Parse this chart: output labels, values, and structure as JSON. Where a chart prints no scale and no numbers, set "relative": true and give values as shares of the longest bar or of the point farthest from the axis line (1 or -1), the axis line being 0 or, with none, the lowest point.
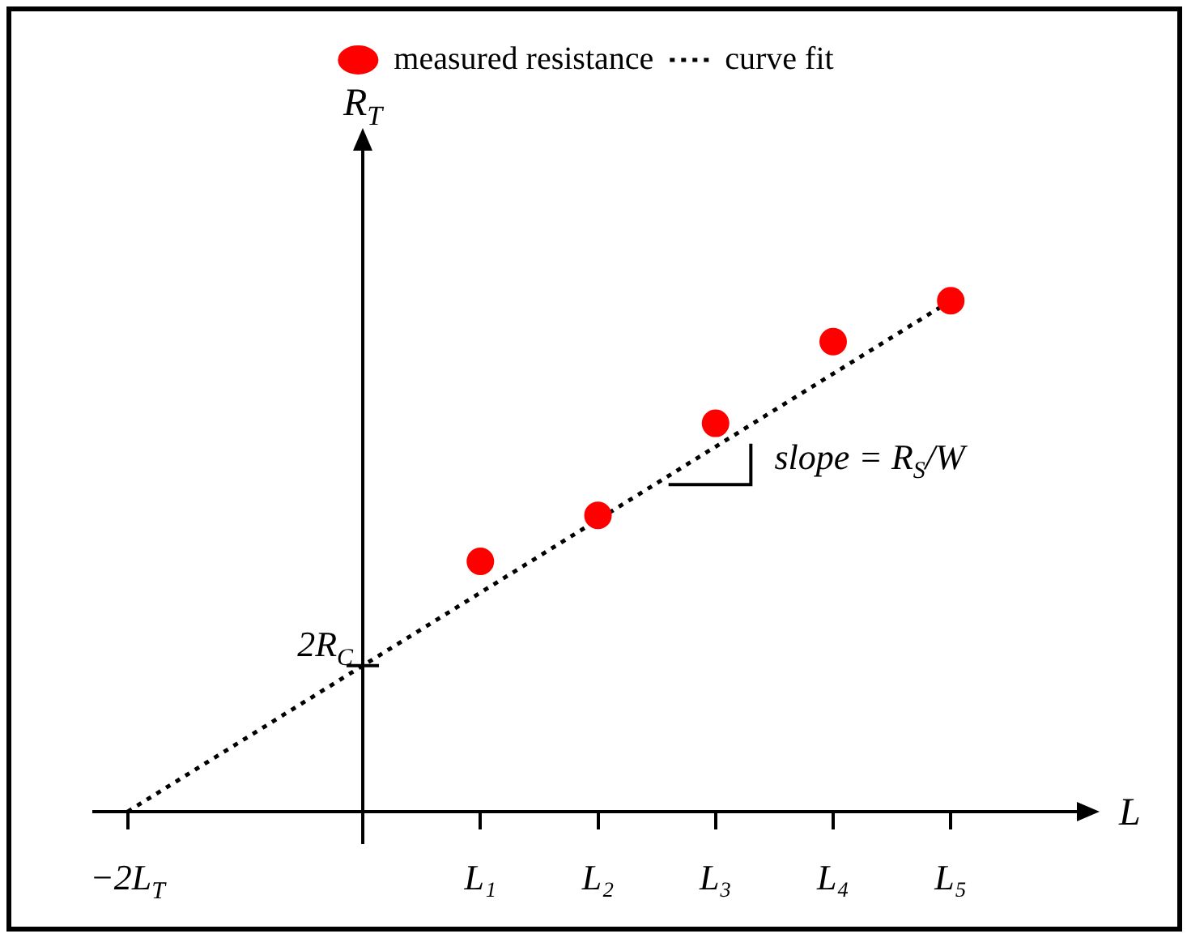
{
  "chart_data": {
    "type": "scatter",
    "xlabel": "L",
    "ylabel": "R$_{T}$",
    "relative": true,
    "categories": [
      "−2L$_{T}$",
      null,
      null,
      "L₁",
      "L₂",
      "L₃",
      "L₄",
      "L₅"
    ],
    "legend": "top",
    "annotations": [
      "2R$_{C}$",
      "slope = R$_{S}$/W"
    ],
    "series": [
      {
        "name": "measured resistance",
        "color": "#ff0000",
        "marker": "circle",
        "values": [
          null,
          null,
          null,
          0.49,
          0.58,
          0.76,
          0.92,
          1.0
        ]
      },
      {
        "name": "curve fit",
        "type": "line",
        "color": "#000000",
        "line_style": "dotted",
        "marker": "none",
        "values": [
          0,
          null,
          null,
          null,
          null,
          null,
          null,
          1.0
        ]
      }
    ]
  }
}
